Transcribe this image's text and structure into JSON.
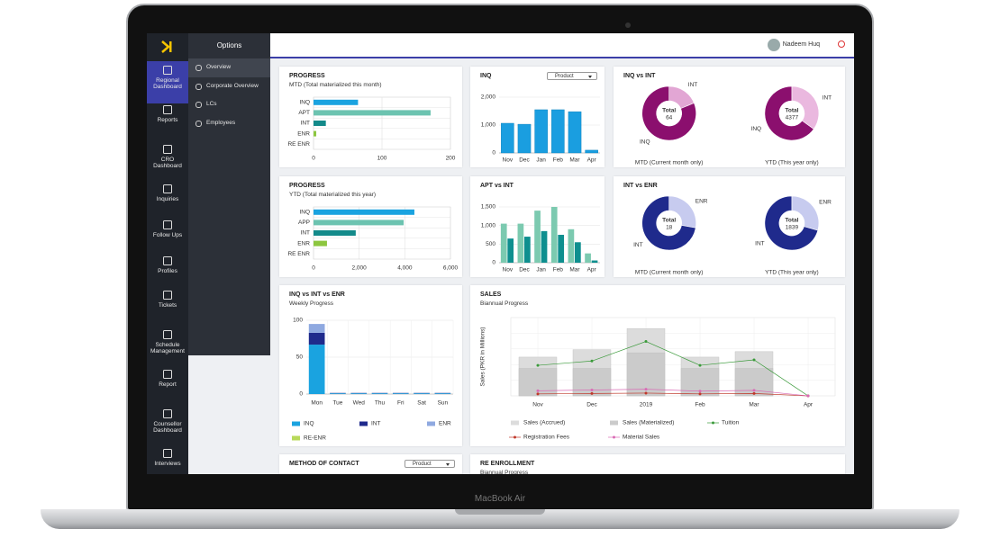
{
  "laptop_label": "MacBook Air",
  "sidebar": [
    "Regional Dashboard",
    "Reports",
    "CRO Dashboard",
    "Inquiries",
    "Follow Ups",
    "Profiles",
    "Tickets",
    "Schedule Management",
    "Report",
    "Counsellor Dashboard",
    "Interviews"
  ],
  "options": {
    "title": "Options",
    "items": [
      "Overview",
      "Corporate Overview",
      "LCs",
      "Employees"
    ]
  },
  "user": "Nadeem Huq",
  "cards": [
    {
      "title": "PROGRESS",
      "subtitle": "MTD (Total materialized this month)",
      "chart": {
        "type": "hbar",
        "categories": [
          "INQ",
          "APT",
          "INT",
          "ENR",
          "RE ENR"
        ],
        "values": [
          65,
          171,
          18,
          4,
          0
        ],
        "colors": [
          "#1aa3e0",
          "#6cc3b0",
          "#138a8a",
          "#8cc63f",
          "#8cc63f"
        ],
        "xlim": [
          0,
          200
        ],
        "xticks": [
          0,
          100,
          200
        ],
        "grid": true
      }
    },
    {
      "title": "INQ",
      "dropdown": "Product",
      "chart": {
        "type": "bar",
        "categories": [
          "Nov",
          "Dec",
          "Jan",
          "Feb",
          "Mar",
          "Apr"
        ],
        "values": [
          1065,
          1030,
          1550,
          1550,
          1480,
          100
        ],
        "color": "#1a9ee0",
        "ylim": [
          0,
          2000
        ],
        "yticks": [
          0,
          {
            "value": 1000,
            "label": "1,000"
          },
          {
            "value": 2000,
            "label": "2,000"
          }
        ],
        "grid": true
      }
    },
    {
      "title": "INQ vs INT",
      "chart": {
        "type": "donuts",
        "donuts": [
          {
            "total_label": "Total",
            "total": 64,
            "caption": "MTD (Current month only)",
            "slices": [
              {
                "name": "INT",
                "value": 12,
                "color": "#e2a6d4"
              },
              {
                "name": "INQ",
                "value": 52,
                "color": "#8b0f6e"
              }
            ]
          },
          {
            "total_label": "Total",
            "total": 4377,
            "caption": "YTD (This year only)",
            "slices": [
              {
                "name": "INT",
                "value": 1527,
                "color": "#eab8df"
              },
              {
                "name": "INQ",
                "value": 2850,
                "color": "#8b0f6e"
              }
            ]
          }
        ]
      }
    },
    {
      "title": "PROGRESS",
      "subtitle": "YTD (Total materialized this year)",
      "chart": {
        "type": "hbar",
        "categories": [
          "INQ",
          "APP",
          "INT",
          "ENR",
          "RE ENR"
        ],
        "values": [
          4420,
          3950,
          1850,
          590,
          0
        ],
        "colors": [
          "#1aa3e0",
          "#6cc3b0",
          "#138a8a",
          "#8cc63f",
          "#8cc63f"
        ],
        "xlim": [
          0,
          6000
        ],
        "xticks": [
          0,
          {
            "value": 2000,
            "label": "2,000"
          },
          {
            "value": 4000,
            "label": "4,000"
          },
          {
            "value": 6000,
            "label": "6,000"
          }
        ],
        "grid": true
      }
    },
    {
      "title": "APT vs INT",
      "chart": {
        "type": "groupbar",
        "categories": [
          "Nov",
          "Dec",
          "Jan",
          "Feb",
          "Mar",
          "Apr"
        ],
        "series": [
          {
            "color": "#7ccab0",
            "values": [
              1050,
              1050,
              1400,
              1500,
              900,
              250
            ]
          },
          {
            "color": "#0e8f8f",
            "values": [
              650,
              700,
              850,
              750,
              550,
              60
            ]
          }
        ],
        "ylim": [
          0,
          1500
        ],
        "yticks": [
          0,
          500,
          {
            "value": 1000,
            "label": "1,000"
          },
          {
            "value": 1500,
            "label": "1,500"
          }
        ],
        "grid": true
      }
    },
    {
      "title": "INT vs ENR",
      "chart": {
        "type": "donuts",
        "donuts": [
          {
            "total_label": "Total",
            "total": 18,
            "caption": "MTD (Current month only)",
            "slices": [
              {
                "name": "ENR",
                "value": 5,
                "color": "#c7cbef"
              },
              {
                "name": "INT",
                "value": 13,
                "color": "#1f2a8c"
              }
            ]
          },
          {
            "total_label": "Total",
            "total": 1839,
            "caption": "YTD (This year only)",
            "slices": [
              {
                "name": "ENR",
                "value": 539,
                "color": "#c7cbef"
              },
              {
                "name": "INT",
                "value": 1300,
                "color": "#1f2a8c"
              }
            ]
          }
        ]
      }
    },
    {
      "title": "INQ vs INT vs ENR",
      "subtitle": "Weekly Progress",
      "chart": {
        "type": "stackbar",
        "categories": [
          "Mon",
          "Tue",
          "Wed",
          "Thu",
          "Fri",
          "Sat",
          "Sun"
        ],
        "series": [
          {
            "name": "INQ",
            "color": "#1aa3e0",
            "values": [
              67,
              1,
              1,
              1,
              1,
              1,
              1
            ]
          },
          {
            "name": "INT",
            "color": "#1f2a8c",
            "values": [
              16,
              0.5,
              0.5,
              0.5,
              0.5,
              0.5,
              0.5
            ]
          },
          {
            "name": "ENR",
            "color": "#8fa9e0",
            "values": [
              12,
              0,
              0,
              0,
              0,
              0,
              0
            ]
          },
          {
            "name": "RE-ENR",
            "color": "#b8d95a",
            "values": [
              0,
              0,
              0,
              0,
              0,
              0,
              0
            ]
          }
        ],
        "ylim": [
          0,
          100
        ],
        "yticks": [
          0,
          50,
          100
        ],
        "grid": true
      }
    },
    {
      "title": "SALES",
      "subtitle": "Biannual Progress",
      "chart": {
        "type": "combo",
        "y_label": "Sales (PKR in Millions)",
        "categories": [
          "Nov",
          "Dec",
          "2019",
          "Feb",
          "Mar",
          "Apr"
        ],
        "ylim": [
          0,
          20
        ],
        "series": [
          {
            "name": "Sales (Accrued)",
            "kind": "bar",
            "color": "#dcdcdc",
            "values": [
              9.9,
              11.8,
              17.2,
              9.9,
              11.3,
              0
            ]
          },
          {
            "name": "Sales (Materialized)",
            "kind": "bar",
            "color": "#cbcbcb",
            "values": [
              7,
              7,
              11,
              7,
              7,
              0
            ]
          },
          {
            "name": "Tuition",
            "kind": "line",
            "color": "#3a9a3a",
            "values": [
              7.8,
              8.9,
              13.9,
              7.8,
              9.2,
              0
            ]
          },
          {
            "name": "Registration Fees",
            "kind": "line",
            "color": "#c0392b",
            "values": [
              0.5,
              0.6,
              0.7,
              0.5,
              0.6,
              0
            ]
          },
          {
            "name": "Material Sales",
            "kind": "line",
            "color": "#d96bb5",
            "values": [
              1.3,
              1.5,
              1.7,
              1.2,
              1.4,
              0
            ]
          }
        ]
      }
    },
    {
      "title": "METHOD OF CONTACT",
      "dropdown": "Product"
    },
    {
      "title": "RE ENROLLMENT",
      "subtitle": "Biannual Progress"
    }
  ]
}
